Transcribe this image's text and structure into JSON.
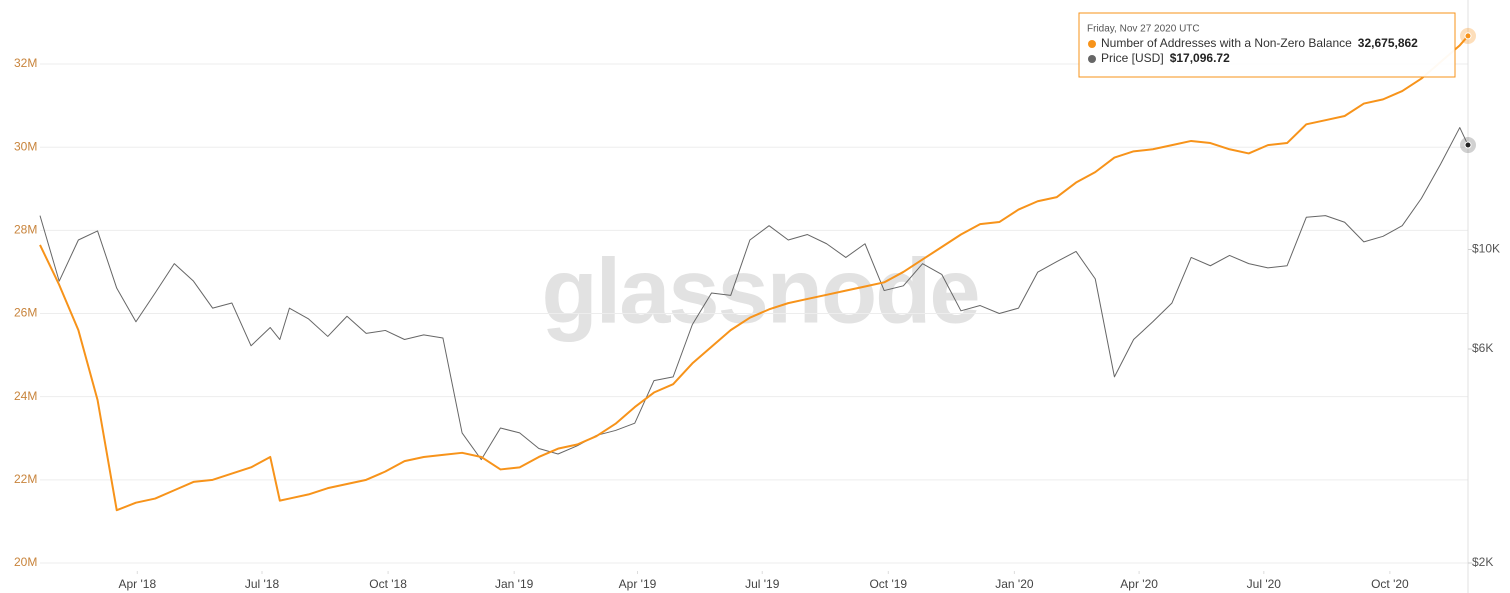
{
  "chart_data": {
    "type": "line",
    "watermark": "glassnode",
    "x": [
      "2018-01-20",
      "2018-02-03",
      "2018-02-17",
      "2018-03-03",
      "2018-03-17",
      "2018-03-31",
      "2018-04-14",
      "2018-04-28",
      "2018-05-12",
      "2018-05-26",
      "2018-06-09",
      "2018-06-23",
      "2018-07-07",
      "2018-07-14",
      "2018-07-21",
      "2018-08-04",
      "2018-08-18",
      "2018-09-01",
      "2018-09-15",
      "2018-09-29",
      "2018-10-13",
      "2018-10-27",
      "2018-11-10",
      "2018-11-24",
      "2018-12-08",
      "2018-12-22",
      "2019-01-05",
      "2019-01-19",
      "2019-02-02",
      "2019-02-16",
      "2019-03-02",
      "2019-03-16",
      "2019-03-30",
      "2019-04-13",
      "2019-04-27",
      "2019-05-11",
      "2019-05-25",
      "2019-06-08",
      "2019-06-22",
      "2019-07-06",
      "2019-07-20",
      "2019-08-03",
      "2019-08-17",
      "2019-08-31",
      "2019-09-14",
      "2019-09-28",
      "2019-10-12",
      "2019-10-26",
      "2019-11-09",
      "2019-11-23",
      "2019-12-07",
      "2019-12-21",
      "2020-01-04",
      "2020-01-18",
      "2020-02-01",
      "2020-02-15",
      "2020-02-29",
      "2020-03-14",
      "2020-03-28",
      "2020-04-11",
      "2020-04-25",
      "2020-05-09",
      "2020-05-23",
      "2020-06-06",
      "2020-06-20",
      "2020-07-04",
      "2020-07-18",
      "2020-08-01",
      "2020-08-15",
      "2020-08-29",
      "2020-09-12",
      "2020-09-26",
      "2020-10-10",
      "2020-10-24",
      "2020-11-07",
      "2020-11-21",
      "2020-11-27"
    ],
    "xlim": [
      "2018-01-20",
      "2020-11-27"
    ],
    "xticks": [
      {
        "value": "2018-04-01",
        "label": "Apr '18"
      },
      {
        "value": "2018-07-01",
        "label": "Jul '18"
      },
      {
        "value": "2018-10-01",
        "label": "Oct '18"
      },
      {
        "value": "2019-01-01",
        "label": "Jan '19"
      },
      {
        "value": "2019-04-01",
        "label": "Apr '19"
      },
      {
        "value": "2019-07-01",
        "label": "Jul '19"
      },
      {
        "value": "2019-10-01",
        "label": "Oct '19"
      },
      {
        "value": "2020-01-01",
        "label": "Jan '20"
      },
      {
        "value": "2020-04-01",
        "label": "Apr '20"
      },
      {
        "value": "2020-07-01",
        "label": "Jul '20"
      },
      {
        "value": "2020-10-01",
        "label": "Oct '20"
      }
    ],
    "ylim": [
      20000000,
      33540000
    ],
    "yticks": [
      {
        "value": 20000000,
        "label": "20M"
      },
      {
        "value": 22000000,
        "label": "22M"
      },
      {
        "value": 24000000,
        "label": "24M"
      },
      {
        "value": 26000000,
        "label": "26M"
      },
      {
        "value": 28000000,
        "label": "28M"
      },
      {
        "value": 30000000,
        "label": "30M"
      },
      {
        "value": 32000000,
        "label": "32M"
      }
    ],
    "y2lim": [
      2000,
      36000
    ],
    "y2_log_scale": true,
    "y2ticks": [
      {
        "value": 2000,
        "label": "$2K"
      },
      {
        "value": 6000,
        "label": "$6K"
      },
      {
        "value": 10000,
        "label": "$10K"
      }
    ],
    "grid": true,
    "tooltip_title": "Friday, Nov 27 2020 UTC",
    "series": [
      {
        "name": "Number of Addresses with a Non-Zero Balance",
        "color": "#f7931a",
        "values": [
          27650000,
          26690000,
          25600000,
          23920000,
          21270000,
          21450000,
          21550000,
          21750000,
          21950000,
          22000000,
          22150000,
          22300000,
          22550000,
          21500000,
          21550000,
          21650000,
          21800000,
          21900000,
          22000000,
          22200000,
          22450000,
          22550000,
          22600000,
          22650000,
          22550000,
          22250000,
          22300000,
          22550000,
          22750000,
          22850000,
          23050000,
          23350000,
          23750000,
          24100000,
          24300000,
          24800000,
          25200000,
          25600000,
          25900000,
          26100000,
          26250000,
          26350000,
          26450000,
          26550000,
          26650000,
          26750000,
          27000000,
          27300000,
          27600000,
          27900000,
          28150000,
          28200000,
          28500000,
          28700000,
          28800000,
          29150000,
          29400000,
          29750000,
          29900000,
          29950000,
          30050000,
          30150000,
          30100000,
          29950000,
          29850000,
          30050000,
          30100000,
          30550000,
          30650000,
          30750000,
          31050000,
          31150000,
          31350000,
          31650000,
          32050000,
          32450000,
          32675862
        ],
        "value_labels": [
          null,
          null,
          null,
          null,
          null,
          null,
          null,
          null,
          null,
          null,
          null,
          null,
          null,
          null,
          null,
          null,
          null,
          null,
          null,
          null,
          null,
          null,
          null,
          null,
          null,
          null,
          null,
          null,
          null,
          null,
          null,
          null,
          null,
          null,
          null,
          null,
          null,
          null,
          null,
          null,
          null,
          null,
          null,
          null,
          null,
          null,
          null,
          null,
          null,
          null,
          null,
          null,
          null,
          null,
          null,
          null,
          null,
          null,
          null,
          null,
          null,
          null,
          null,
          null,
          null,
          null,
          null,
          null,
          null,
          null,
          null,
          null,
          null,
          null,
          null,
          null,
          "32,675,862"
        ]
      },
      {
        "name": "Price [USD]",
        "color": "#666666",
        "axis": "y2",
        "values": [
          11900,
          8500,
          10500,
          11000,
          8200,
          6900,
          8000,
          9300,
          8500,
          7400,
          7600,
          6100,
          6700,
          6300,
          7400,
          7000,
          6400,
          7100,
          6500,
          6600,
          6300,
          6450,
          6350,
          3900,
          3400,
          4000,
          3900,
          3600,
          3500,
          3650,
          3850,
          3950,
          4100,
          5100,
          5200,
          6800,
          8000,
          7900,
          10500,
          11300,
          10500,
          10800,
          10300,
          9600,
          10300,
          8100,
          8300,
          9300,
          8800,
          7300,
          7500,
          7200,
          7400,
          8900,
          9400,
          9900,
          8600,
          5200,
          6300,
          6900,
          7600,
          9600,
          9200,
          9700,
          9300,
          9100,
          9200,
          11800,
          11900,
          11500,
          10400,
          10700,
          11300,
          13000,
          15500,
          18700,
          17096.72
        ],
        "value_labels": [
          null,
          null,
          null,
          null,
          null,
          null,
          null,
          null,
          null,
          null,
          null,
          null,
          null,
          null,
          null,
          null,
          null,
          null,
          null,
          null,
          null,
          null,
          null,
          null,
          null,
          null,
          null,
          null,
          null,
          null,
          null,
          null,
          null,
          null,
          null,
          null,
          null,
          null,
          null,
          null,
          null,
          null,
          null,
          null,
          null,
          null,
          null,
          null,
          null,
          null,
          null,
          null,
          null,
          null,
          null,
          null,
          null,
          null,
          null,
          null,
          null,
          null,
          null,
          null,
          null,
          null,
          null,
          null,
          null,
          null,
          null,
          null,
          null,
          null,
          null,
          null,
          "$17,096.72"
        ]
      }
    ]
  }
}
